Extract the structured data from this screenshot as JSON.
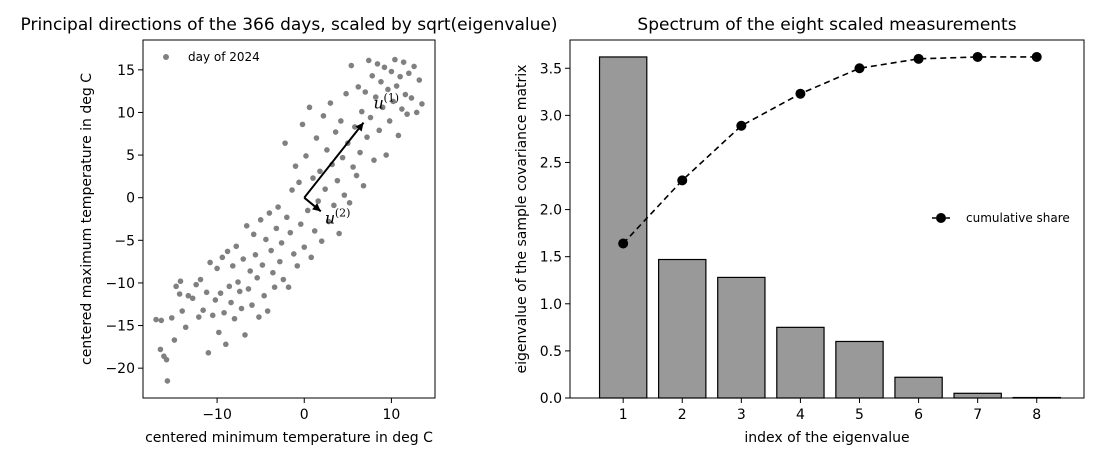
{
  "chart_data": [
    {
      "type": "scatter",
      "title": "Principal directions of the 366 days, scaled by sqrt(eigenvalue)",
      "xlabel": "centered minimum temperature in deg C",
      "ylabel": "centered maximum temperature in deg C",
      "xlim": [
        -18.5,
        15
      ],
      "ylim": [
        -23.5,
        18.5
      ],
      "xticks": [
        -10,
        0,
        10
      ],
      "yticks": [
        -20,
        -15,
        -10,
        -5,
        0,
        5,
        10,
        15
      ],
      "legend": {
        "label": "day of 2024",
        "placement": "top-left"
      },
      "point_color": "#808080",
      "n_points": 366,
      "vectors": [
        {
          "label": "u",
          "sup": "(1)",
          "from": [
            0,
            0
          ],
          "to": [
            6.8,
            8.8
          ]
        },
        {
          "label": "u",
          "sup": "(2)",
          "from": [
            0,
            0
          ],
          "to": [
            1.9,
            -1.6
          ]
        }
      ],
      "points": [
        [
          -17.0,
          -14.3
        ],
        [
          -16.5,
          -17.8
        ],
        [
          -16.4,
          -14.4
        ],
        [
          -16.1,
          -18.6
        ],
        [
          -15.8,
          -19.0
        ],
        [
          -15.7,
          -21.5
        ],
        [
          -15.2,
          -14.1
        ],
        [
          -14.9,
          -16.7
        ],
        [
          -14.7,
          -10.4
        ],
        [
          -14.3,
          -11.3
        ],
        [
          -14.2,
          -9.8
        ],
        [
          -14.0,
          -13.3
        ],
        [
          -13.6,
          -15.2
        ],
        [
          -13.3,
          -11.5
        ],
        [
          -12.8,
          -11.8
        ],
        [
          -12.4,
          -10.2
        ],
        [
          -12.1,
          -14.0
        ],
        [
          -11.9,
          -9.6
        ],
        [
          -11.6,
          -13.2
        ],
        [
          -11.2,
          -11.1
        ],
        [
          -11.0,
          -18.2
        ],
        [
          -10.8,
          -7.6
        ],
        [
          -10.5,
          -13.8
        ],
        [
          -10.2,
          -12.0
        ],
        [
          -10.0,
          -8.3
        ],
        [
          -9.8,
          -15.8
        ],
        [
          -9.6,
          -11.2
        ],
        [
          -9.4,
          -7.0
        ],
        [
          -9.2,
          -13.5
        ],
        [
          -9.0,
          -17.2
        ],
        [
          -8.8,
          -6.3
        ],
        [
          -8.6,
          -10.4
        ],
        [
          -8.4,
          -12.3
        ],
        [
          -8.2,
          -8.0
        ],
        [
          -8.0,
          -14.2
        ],
        [
          -7.8,
          -5.7
        ],
        [
          -7.6,
          -9.9
        ],
        [
          -7.4,
          -11.0
        ],
        [
          -7.2,
          -13.0
        ],
        [
          -7.0,
          -7.2
        ],
        [
          -6.8,
          -16.1
        ],
        [
          -6.6,
          -3.3
        ],
        [
          -6.4,
          -10.7
        ],
        [
          -6.2,
          -8.6
        ],
        [
          -6.0,
          -12.6
        ],
        [
          -5.8,
          -4.3
        ],
        [
          -5.6,
          -6.7
        ],
        [
          -5.4,
          -9.4
        ],
        [
          -5.2,
          -14.0
        ],
        [
          -5.0,
          -2.6
        ],
        [
          -4.8,
          -7.9
        ],
        [
          -4.6,
          -11.5
        ],
        [
          -4.4,
          -4.9
        ],
        [
          -4.2,
          -13.3
        ],
        [
          -4.0,
          -1.8
        ],
        [
          -3.8,
          -6.2
        ],
        [
          -3.6,
          -8.8
        ],
        [
          -3.4,
          -10.5
        ],
        [
          -3.2,
          -3.6
        ],
        [
          -3.0,
          -1.1
        ],
        [
          -2.8,
          -7.5
        ],
        [
          -2.6,
          -5.3
        ],
        [
          -2.4,
          -9.6
        ],
        [
          -2.2,
          6.4
        ],
        [
          -2.0,
          -2.3
        ],
        [
          -1.8,
          -10.5
        ],
        [
          -1.6,
          -4.1
        ],
        [
          -1.4,
          0.9
        ],
        [
          -1.2,
          -6.6
        ],
        [
          -1.0,
          3.7
        ],
        [
          -0.8,
          -8.0
        ],
        [
          -0.6,
          1.8
        ],
        [
          -0.4,
          -3.1
        ],
        [
          -0.2,
          8.6
        ],
        [
          0.0,
          -5.8
        ],
        [
          0.2,
          4.9
        ],
        [
          0.4,
          -1.5
        ],
        [
          0.6,
          10.6
        ],
        [
          0.8,
          -7.0
        ],
        [
          1.0,
          2.3
        ],
        [
          1.2,
          -3.9
        ],
        [
          1.4,
          7.0
        ],
        [
          1.6,
          -0.4
        ],
        [
          1.8,
          3.1
        ],
        [
          2.0,
          -5.1
        ],
        [
          2.2,
          9.6
        ],
        [
          2.4,
          1.0
        ],
        [
          2.6,
          5.6
        ],
        [
          2.8,
          -2.8
        ],
        [
          3.0,
          11.1
        ],
        [
          3.2,
          3.9
        ],
        [
          3.4,
          -0.9
        ],
        [
          3.6,
          7.7
        ],
        [
          3.8,
          2.0
        ],
        [
          4.0,
          -4.2
        ],
        [
          4.2,
          9.0
        ],
        [
          4.4,
          4.7
        ],
        [
          4.6,
          0.3
        ],
        [
          4.8,
          12.2
        ],
        [
          5.0,
          6.4
        ],
        [
          5.2,
          -0.6
        ],
        [
          5.4,
          15.5
        ],
        [
          5.6,
          3.6
        ],
        [
          5.8,
          8.3
        ],
        [
          6.0,
          2.6
        ],
        [
          6.2,
          13.0
        ],
        [
          6.4,
          5.3
        ],
        [
          6.6,
          10.1
        ],
        [
          6.8,
          1.4
        ],
        [
          7.0,
          12.4
        ],
        [
          7.2,
          7.1
        ],
        [
          7.4,
          16.1
        ],
        [
          7.6,
          9.4
        ],
        [
          7.8,
          14.3
        ],
        [
          8.0,
          4.4
        ],
        [
          8.2,
          11.8
        ],
        [
          8.4,
          15.7
        ],
        [
          8.6,
          7.9
        ],
        [
          8.8,
          13.6
        ],
        [
          9.0,
          10.6
        ],
        [
          9.2,
          15.3
        ],
        [
          9.4,
          5.0
        ],
        [
          9.6,
          12.7
        ],
        [
          9.8,
          9.0
        ],
        [
          10.0,
          14.8
        ],
        [
          10.2,
          11.3
        ],
        [
          10.4,
          16.2
        ],
        [
          10.6,
          13.1
        ],
        [
          10.8,
          7.3
        ],
        [
          11.0,
          14.2
        ],
        [
          11.2,
          10.4
        ],
        [
          11.4,
          15.9
        ],
        [
          11.6,
          12.1
        ],
        [
          11.8,
          9.8
        ],
        [
          12.0,
          14.6
        ],
        [
          12.3,
          11.7
        ],
        [
          12.6,
          15.4
        ],
        [
          12.9,
          10.0
        ],
        [
          13.2,
          13.8
        ],
        [
          13.5,
          11.0
        ]
      ]
    },
    {
      "type": "bar",
      "title": "Spectrum of the eight scaled measurements",
      "xlabel": "index of the eigenvalue",
      "ylabel": "eigenvalue of the sample covariance matrix",
      "categories": [
        "1",
        "2",
        "3",
        "4",
        "5",
        "6",
        "7",
        "8"
      ],
      "values": [
        3.62,
        1.47,
        1.28,
        0.75,
        0.6,
        0.22,
        0.05,
        0.005
      ],
      "xlim": [
        0.1,
        8.8
      ],
      "ylim": [
        0,
        3.8
      ],
      "yticks": [
        "0.0",
        "0.5",
        "1.0",
        "1.5",
        "2.0",
        "2.5",
        "3.0",
        "3.5"
      ],
      "bar_color": "#999999",
      "series": [
        {
          "name": "cumulative share",
          "values": [
            1.64,
            2.31,
            2.89,
            3.23,
            3.5,
            3.6,
            3.62,
            3.62
          ],
          "style": "dashed-line-dots",
          "color": "#000000"
        }
      ],
      "legend": {
        "placement": "center-right"
      }
    }
  ]
}
